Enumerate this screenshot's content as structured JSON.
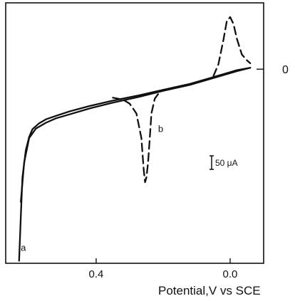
{
  "chart_data": {
    "type": "line",
    "title": "",
    "xlabel": "Potential,V vs SCE",
    "ylabel": "",
    "x_reversed": true,
    "xlim": [
      0.67,
      -0.1
    ],
    "ylim": [
      -395,
      135
    ],
    "xticks": [
      {
        "value": 0.4,
        "label": "0.4"
      },
      {
        "value": 0.0,
        "label": "0.0"
      }
    ],
    "yticks": [
      {
        "value": 0,
        "label": "0"
      }
    ],
    "scale_bar": {
      "label": "50 μA",
      "value": 50
    },
    "grid": false,
    "legend": "none",
    "series": [
      {
        "name": "a",
        "style": "solid",
        "color": "#111111",
        "x": [
          0.63,
          0.625,
          0.62,
          0.61,
          0.6,
          0.59,
          0.57,
          0.55,
          0.52,
          0.48,
          0.42,
          0.35,
          0.27,
          0.2,
          0.12,
          0.05,
          -0.02,
          -0.06
        ],
        "y": [
          -390,
          -300,
          -220,
          -165,
          -138,
          -122,
          -110,
          -102,
          -95,
          -86,
          -75,
          -64,
          -53,
          -42,
          -30,
          -16,
          -2,
          3
        ]
      },
      {
        "name": "a-return",
        "style": "solid",
        "color": "#111111",
        "x": [
          -0.06,
          -0.02,
          0.05,
          0.12,
          0.2,
          0.27,
          0.35,
          0.42,
          0.48,
          0.52,
          0.55,
          0.58,
          0.6,
          0.615,
          0.625
        ],
        "y": [
          3,
          -4,
          -18,
          -32,
          -44,
          -56,
          -68,
          -80,
          -92,
          -100,
          -109,
          -121,
          -140,
          -190,
          -270
        ]
      },
      {
        "name": "b",
        "style": "dashed",
        "color": "#111111",
        "x": [
          0.35,
          0.32,
          0.3,
          0.28,
          0.265,
          0.258,
          0.254,
          0.25,
          0.245,
          0.24,
          0.235,
          0.225,
          0.21,
          0.2
        ],
        "y": [
          -58,
          -62,
          -70,
          -90,
          -140,
          -205,
          -230,
          -220,
          -190,
          -140,
          -90,
          -60,
          -46,
          -42
        ]
      },
      {
        "name": "b-anodic",
        "style": "dashed",
        "color": "#111111",
        "x": [
          0.05,
          0.035,
          0.02,
          0.01,
          0.0,
          -0.01,
          -0.02,
          -0.035,
          -0.05,
          -0.06
        ],
        "y": [
          -14,
          10,
          60,
          98,
          106,
          92,
          62,
          30,
          18,
          12
        ]
      }
    ],
    "annotations": [
      {
        "text": "a",
        "x": 0.625,
        "y": -370
      },
      {
        "text": "b",
        "x": 0.215,
        "y": -128
      }
    ]
  }
}
